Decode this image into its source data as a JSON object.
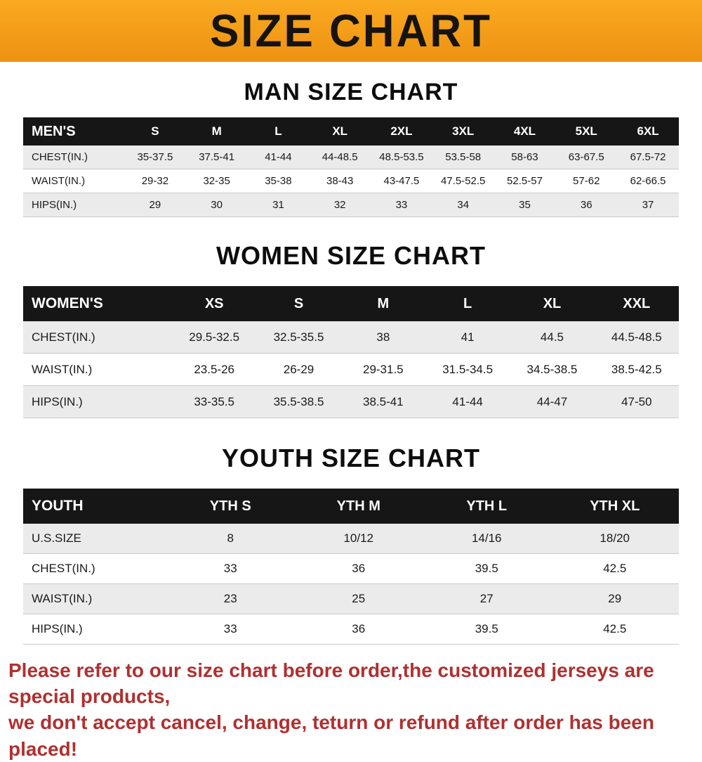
{
  "banner": {
    "title": "SIZE CHART",
    "bg_top": "#f9aa20",
    "bg_bottom": "#ee9113",
    "text_color": "#161310"
  },
  "chart_data": [
    {
      "type": "table",
      "title": "MAN SIZE CHART",
      "header": [
        "MEN'S",
        "S",
        "M",
        "L",
        "XL",
        "2XL",
        "3XL",
        "4XL",
        "5XL",
        "6XL"
      ],
      "rows": [
        [
          "CHEST(IN.)",
          "35-37.5",
          "37.5-41",
          "41-44",
          "44-48.5",
          "48.5-53.5",
          "53.5-58",
          "58-63",
          "63-67.5",
          "67.5-72"
        ],
        [
          "WAIST(IN.)",
          "29-32",
          "32-35",
          "35-38",
          "38-43",
          "43-47.5",
          "47.5-52.5",
          "52.5-57",
          "57-62",
          "62-66.5"
        ],
        [
          "HIPS(IN.)",
          "29",
          "30",
          "31",
          "32",
          "33",
          "34",
          "35",
          "36",
          "37"
        ]
      ]
    },
    {
      "type": "table",
      "title": "WOMEN SIZE CHART",
      "header": [
        "WOMEN'S",
        "XS",
        "S",
        "M",
        "L",
        "XL",
        "XXL"
      ],
      "rows": [
        [
          "CHEST(IN.)",
          "29.5-32.5",
          "32.5-35.5",
          "38",
          "41",
          "44.5",
          "44.5-48.5"
        ],
        [
          "WAIST(IN.)",
          "23.5-26",
          "26-29",
          "29-31.5",
          "31.5-34.5",
          "34.5-38.5",
          "38.5-42.5"
        ],
        [
          "HIPS(IN.)",
          "33-35.5",
          "35.5-38.5",
          "38.5-41",
          "41-44",
          "44-47",
          "47-50"
        ]
      ]
    },
    {
      "type": "table",
      "title": "YOUTH SIZE CHART",
      "header": [
        "YOUTH",
        "YTH S",
        "YTH M",
        "YTH L",
        "YTH XL"
      ],
      "rows": [
        [
          "U.S.SIZE",
          "8",
          "10/12",
          "14/16",
          "18/20"
        ],
        [
          "CHEST(IN.)",
          "33",
          "36",
          "39.5",
          "42.5"
        ],
        [
          "WAIST(IN.)",
          "23",
          "25",
          "27",
          "29"
        ],
        [
          "HIPS(IN.)",
          "33",
          "36",
          "39.5",
          "42.5"
        ]
      ]
    }
  ],
  "footer": {
    "line1": "Please refer to our size chart before order,the customized jerseys are special products,",
    "line2": "we don't accept cancel, change, teturn or refund after order has been placed!",
    "color": "#b03030"
  }
}
